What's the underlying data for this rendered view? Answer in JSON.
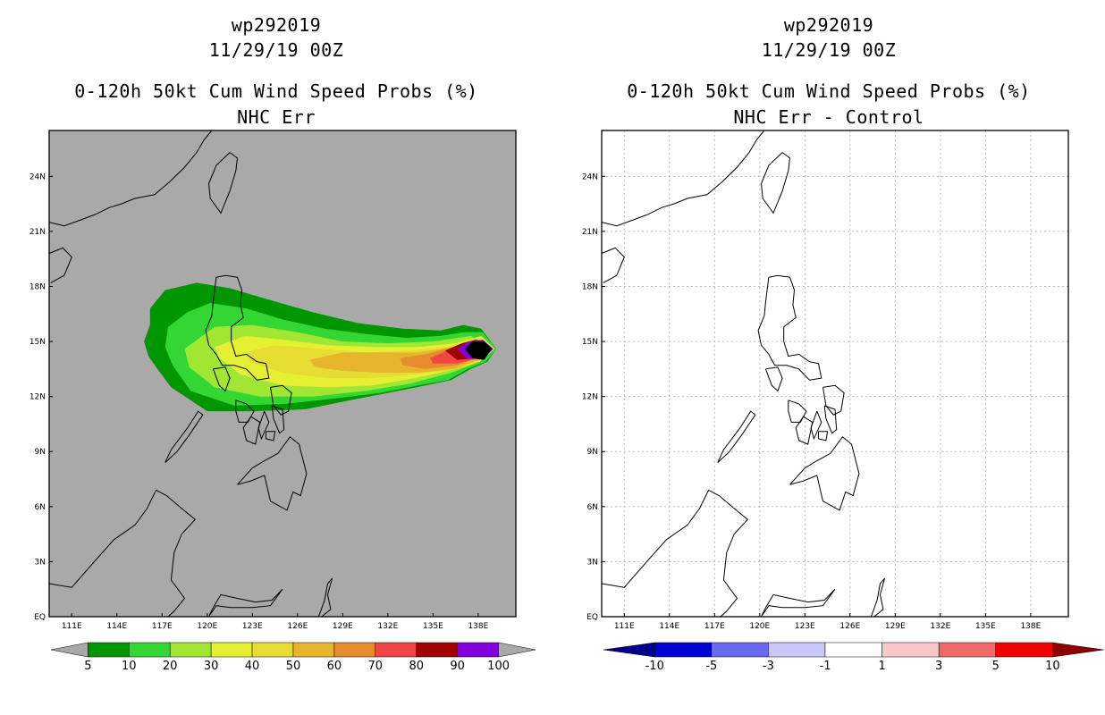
{
  "chart_data": [
    {
      "type": "heatmap",
      "title": [
        "wp292019",
        "11/29/19 00Z",
        "0-120h 50kt Cum Wind Speed Probs (%)",
        "NHC Err"
      ],
      "xlabel": "",
      "ylabel": "",
      "x_ticks": [
        "111E",
        "114E",
        "117E",
        "120E",
        "123E",
        "126E",
        "129E",
        "132E",
        "135E",
        "138E"
      ],
      "y_ticks": [
        "EQ",
        "3N",
        "6N",
        "9N",
        "12N",
        "15N",
        "18N",
        "21N",
        "24N"
      ],
      "xlim": [
        109.5,
        140.5
      ],
      "ylim": [
        0,
        26.5
      ],
      "grid": false,
      "background": "#a9a9a9",
      "colorbar": {
        "levels": [
          "5",
          "10",
          "20",
          "30",
          "40",
          "50",
          "60",
          "70",
          "80",
          "90",
          "100"
        ],
        "colors": [
          "#009600",
          "#33d633",
          "#a0e632",
          "#e6f032",
          "#e6dc32",
          "#e6b42d",
          "#e68c2d",
          "#f04646",
          "#a00000",
          "#8200dc"
        ],
        "under_color": "#a9a9a9",
        "over_color": "#a9a9a9"
      },
      "contours": [
        {
          "level": 5,
          "lon": [
            115.8,
            116.2,
            116.2,
            117.2,
            119.3,
            121.5,
            124,
            127,
            130,
            133,
            135.5,
            137,
            138.2,
            139.2,
            138.6,
            137.5,
            136.2,
            134.5,
            132,
            129.5,
            126.5,
            123,
            120,
            117.6,
            116.6,
            116.1,
            115.8
          ],
          "lat": [
            15.0,
            15.9,
            16.8,
            17.8,
            18.2,
            17.9,
            17.3,
            16.6,
            16.0,
            15.7,
            15.6,
            15.9,
            15.7,
            14.6,
            13.9,
            13.5,
            12.9,
            12.6,
            12.2,
            11.8,
            11.3,
            11.2,
            11.2,
            12.5,
            13.6,
            14.2,
            15.0
          ]
        },
        {
          "level": 10,
          "lon": [
            117.2,
            117.4,
            118.7,
            120.2,
            122.6,
            125,
            127.8,
            130.6,
            133.2,
            135.5,
            137,
            138.3,
            139.2,
            138.5,
            137.3,
            136,
            134,
            131.5,
            128.5,
            125.2,
            121.8,
            118.9,
            117.7,
            117.2
          ],
          "lat": [
            14.7,
            15.8,
            16.6,
            17.1,
            16.8,
            16.2,
            15.7,
            15.4,
            15.2,
            15.3,
            15.5,
            15.5,
            14.6,
            13.9,
            13.5,
            12.9,
            12.6,
            12.2,
            11.9,
            11.6,
            11.5,
            12.3,
            13.7,
            14.7
          ]
        },
        {
          "level": 20,
          "lon": [
            118.5,
            120.5,
            123,
            126,
            129,
            132,
            135,
            137.5,
            139.1,
            138.1,
            136.2,
            133.5,
            130.5,
            127,
            123.5,
            120.5,
            118.8,
            118.5
          ],
          "lat": [
            14.6,
            15.8,
            15.9,
            15.5,
            15.0,
            14.9,
            15.0,
            15.3,
            14.6,
            13.9,
            13.3,
            12.7,
            12.3,
            12.0,
            12.0,
            12.5,
            13.6,
            14.6
          ]
        },
        {
          "level": 30,
          "lon": [
            120.5,
            122.5,
            125,
            128,
            131,
            134,
            136.5,
            138.2,
            139.1,
            138.1,
            136.5,
            133.8,
            131,
            128,
            125,
            122.2,
            120.8,
            120.5
          ],
          "lat": [
            14.7,
            15.3,
            15.1,
            14.8,
            14.7,
            14.7,
            14.9,
            15.3,
            14.6,
            13.9,
            13.5,
            13.0,
            12.6,
            12.5,
            12.6,
            13.2,
            14.1,
            14.7
          ]
        },
        {
          "level": 40,
          "lon": [
            122.5,
            124.5,
            127.5,
            130.5,
            133.5,
            136,
            137.8,
            139,
            138,
            136.5,
            133.8,
            131,
            128,
            125,
            122.8,
            122.5
          ],
          "lat": [
            14.4,
            14.8,
            14.6,
            14.4,
            14.5,
            14.7,
            15.2,
            14.6,
            13.9,
            13.5,
            13.2,
            13.0,
            13.0,
            13.3,
            13.9,
            14.4
          ]
        },
        {
          "level": 50,
          "lon": [
            126.8,
            129,
            131.5,
            134,
            136.3,
            137.8,
            139,
            138,
            136.4,
            134,
            131.5,
            129,
            127.2,
            126.8
          ],
          "lat": [
            14.0,
            14.4,
            14.4,
            14.4,
            14.7,
            15.1,
            14.6,
            14.0,
            13.5,
            13.3,
            13.3,
            13.4,
            13.6,
            14.0
          ]
        },
        {
          "level": 60,
          "lon": [
            132.8,
            134.5,
            136.4,
            137.8,
            139,
            138,
            136.6,
            134.5,
            133,
            132.8
          ],
          "lat": [
            14.1,
            14.3,
            14.7,
            15.1,
            14.6,
            14.1,
            13.7,
            13.5,
            13.7,
            14.1
          ]
        },
        {
          "level": 70,
          "lon": [
            134.8,
            136.5,
            137.8,
            139,
            138,
            136.6,
            135,
            134.8
          ],
          "lat": [
            14.1,
            14.7,
            15.1,
            14.6,
            14.1,
            13.8,
            13.8,
            14.1
          ]
        },
        {
          "level": 80,
          "lon": [
            135.8,
            136.9,
            137.9,
            139,
            138,
            136.6,
            135.8
          ],
          "lat": [
            14.5,
            14.9,
            15.1,
            14.6,
            14.1,
            14.0,
            14.5
          ]
        },
        {
          "level": 90,
          "lon": [
            136.6,
            137.4,
            138.3,
            139,
            138.3,
            137.2,
            136.6
          ],
          "lat": [
            14.6,
            15.0,
            15.1,
            14.6,
            14.0,
            14.1,
            14.6
          ]
        },
        {
          "level": 100,
          "lon": [
            137.1,
            137.6,
            138.4,
            138.9,
            138.4,
            137.6,
            137.1
          ],
          "lat": [
            14.6,
            15.0,
            15.0,
            14.6,
            14.0,
            14.1,
            14.6
          ]
        }
      ]
    },
    {
      "type": "heatmap",
      "title": [
        "wp292019",
        "11/29/19 00Z",
        "0-120h 50kt Cum Wind Speed Probs (%)",
        "NHC Err - Control"
      ],
      "xlabel": "",
      "ylabel": "",
      "x_ticks": [
        "111E",
        "114E",
        "117E",
        "120E",
        "123E",
        "126E",
        "129E",
        "132E",
        "135E",
        "138E"
      ],
      "y_ticks": [
        "EQ",
        "3N",
        "6N",
        "9N",
        "12N",
        "15N",
        "18N",
        "21N",
        "24N"
      ],
      "xlim": [
        109.5,
        140.5
      ],
      "ylim": [
        0,
        26.5
      ],
      "grid": true,
      "background": "#ffffff",
      "colorbar": {
        "levels": [
          "-10",
          "-5",
          "-3",
          "-1",
          "1",
          "3",
          "5",
          "10"
        ],
        "colors": [
          "#0000d0",
          "#6a6af0",
          "#c8c8f8",
          "#ffffff",
          "#f8c8c8",
          "#f06a6a",
          "#f00000"
        ],
        "under_color": "#00008c",
        "over_color": "#8c0000"
      },
      "contours": []
    }
  ]
}
